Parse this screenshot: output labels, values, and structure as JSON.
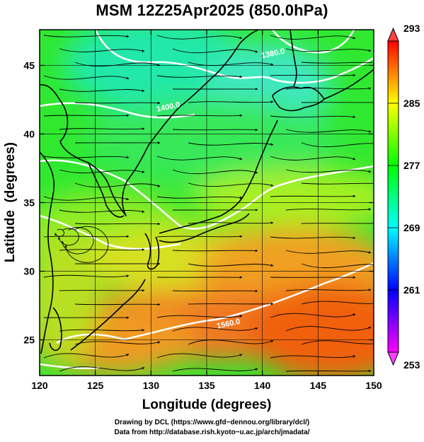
{
  "title": "MSM 12Z25Apr2025 (850.0hPa)",
  "x_axis": {
    "label": "Longitude (degrees)",
    "ticks": [
      "120",
      "125",
      "130",
      "135",
      "140",
      "145",
      "150"
    ],
    "range": [
      120,
      150
    ]
  },
  "y_axis": {
    "label": "Latitude  (degrees)",
    "ticks": [
      "25",
      "30",
      "35",
      "40",
      "45"
    ],
    "range": [
      22.4,
      47.6
    ]
  },
  "colorbar": {
    "labels": [
      "293",
      "285",
      "277",
      "269",
      "261",
      "253"
    ],
    "range": [
      253,
      293
    ],
    "colors": [
      "#ff00ff",
      "#0000ff",
      "#00ffff",
      "#00ff00",
      "#ffff00",
      "#ff0000"
    ]
  },
  "contours": [
    {
      "label": "1380.0",
      "lon": 141.0,
      "lat": 45.7
    },
    {
      "label": "1400.0",
      "lon": 131.6,
      "lat": 41.8
    },
    {
      "label": "1560.0",
      "lon": 137.0,
      "lat": 26.0
    }
  ],
  "credits": {
    "line1": "Drawing by DCL (https://www.gfd−dennou.org/library/dcl/)",
    "line2": "Data from http://database.rish.kyoto−u.ac.jp/arch/jmadata/"
  }
}
